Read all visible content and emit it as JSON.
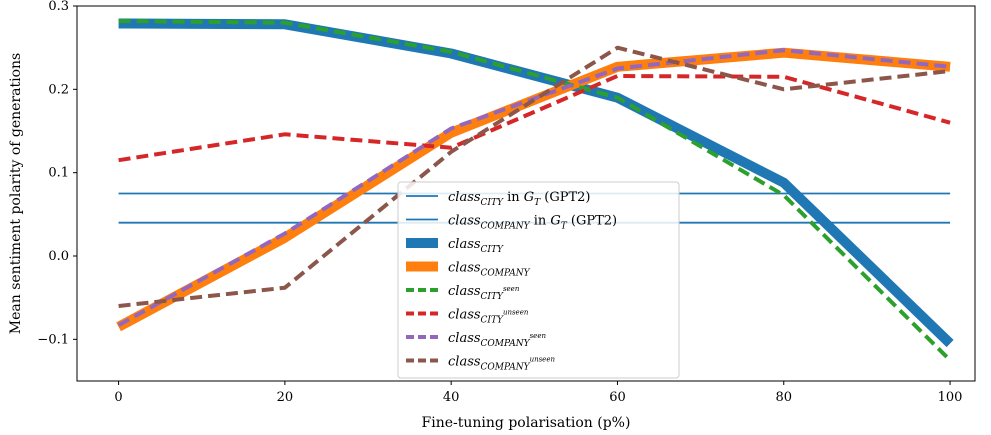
{
  "chart_data": {
    "type": "line",
    "xlabel": "Fine-tuning polarisation (p%)",
    "ylabel": "Mean sentiment polarity of generations",
    "xlim": [
      -5,
      103
    ],
    "ylim": [
      -0.15,
      0.3
    ],
    "xticks": [
      0,
      20,
      40,
      60,
      80,
      100
    ],
    "xtick_labels": [
      "0",
      "20",
      "40",
      "60",
      "80",
      "100"
    ],
    "yticks": [
      -0.1,
      0.0,
      0.1,
      0.2,
      0.3
    ],
    "ytick_labels": [
      "−0.1",
      "0.0",
      "0.1",
      "0.2",
      "0.3"
    ],
    "grid": false,
    "legend_position": "center",
    "baselines": [
      {
        "name": "class_CITY in G_T (GPT2)",
        "legend_main": "class",
        "legend_sub": "CITY",
        "legend_sup": "",
        "legend_suffix": " in ",
        "legend_g": "G",
        "legend_g_sub": "T",
        "legend_tail": " (GPT2)",
        "y": 0.075,
        "color": "#1f77b4"
      },
      {
        "name": "class_COMPANY in G_T (GPT2)",
        "legend_main": "class",
        "legend_sub": "COMPANY",
        "legend_sup": "",
        "legend_suffix": " in ",
        "legend_g": "G",
        "legend_g_sub": "T",
        "legend_tail": " (GPT2)",
        "y": 0.04,
        "color": "#1f77b4"
      }
    ],
    "x": [
      0,
      20,
      40,
      60,
      80,
      100
    ],
    "series": [
      {
        "name": "class_CITY",
        "legend_main": "class",
        "legend_sub": "CITY",
        "legend_sup": "",
        "values": [
          0.279,
          0.278,
          0.243,
          0.19,
          0.088,
          -0.105
        ],
        "color": "#1f77b4",
        "style": "solid",
        "width": 10
      },
      {
        "name": "class_COMPANY",
        "legend_main": "class",
        "legend_sub": "COMPANY",
        "legend_sup": "",
        "values": [
          -0.085,
          0.022,
          0.148,
          0.227,
          0.244,
          0.227
        ],
        "color": "#ff7f0e",
        "style": "solid",
        "width": 10
      },
      {
        "name": "class_CITY^seen",
        "legend_main": "class",
        "legend_sub": "CITY",
        "legend_sup": "seen",
        "values": [
          0.282,
          0.28,
          0.245,
          0.19,
          0.073,
          -0.125
        ],
        "color": "#2ca02c",
        "style": "dashed",
        "width": 4
      },
      {
        "name": "class_CITY^unseen",
        "legend_main": "class",
        "legend_sub": "CITY",
        "legend_sup": "unseen",
        "values": [
          0.115,
          0.146,
          0.13,
          0.216,
          0.215,
          0.16
        ],
        "color": "#d62728",
        "style": "dashed",
        "width": 4
      },
      {
        "name": "class_COMPANY^seen",
        "legend_main": "class",
        "legend_sub": "COMPANY",
        "legend_sup": "seen",
        "values": [
          -0.083,
          0.027,
          0.153,
          0.225,
          0.247,
          0.227
        ],
        "color": "#9467bd",
        "style": "dashed",
        "width": 4
      },
      {
        "name": "class_COMPANY^unseen",
        "legend_main": "class",
        "legend_sub": "COMPANY",
        "legend_sup": "unseen",
        "values": [
          -0.06,
          -0.038,
          0.125,
          0.25,
          0.2,
          0.222
        ],
        "color": "#8c564b",
        "style": "dashed",
        "width": 4
      }
    ]
  }
}
